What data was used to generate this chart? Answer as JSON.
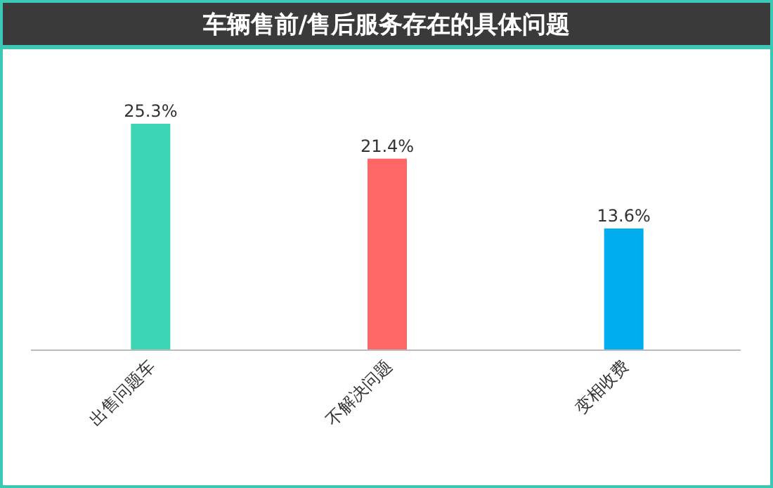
{
  "chart_data": {
    "type": "bar",
    "title": "车辆售前/售后服务存在的具体问题",
    "categories": [
      "出售问题车",
      "不解决问题",
      "变相收费"
    ],
    "values": [
      25.3,
      21.4,
      13.6
    ],
    "colors": [
      "#3dd6b5",
      "#ff6666",
      "#00aeef"
    ],
    "value_labels": [
      "25.3%",
      "21.4%",
      "13.6%"
    ]
  }
}
